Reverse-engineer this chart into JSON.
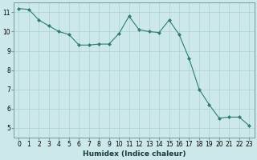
{
  "x": [
    0,
    1,
    2,
    3,
    4,
    5,
    6,
    7,
    8,
    9,
    10,
    11,
    12,
    13,
    14,
    15,
    16,
    17,
    18,
    19,
    20,
    21,
    22,
    23
  ],
  "y": [
    11.2,
    11.15,
    10.6,
    10.3,
    10.0,
    9.85,
    9.3,
    9.3,
    9.35,
    9.35,
    9.9,
    10.8,
    10.1,
    10.0,
    9.95,
    10.6,
    9.85,
    8.6,
    7.0,
    6.2,
    5.5,
    5.55,
    5.55,
    5.1
  ],
  "line_color": "#2e7d6e",
  "marker": "D",
  "marker_size": 2,
  "bg_color": "#cce8ea",
  "grid_color": "#b0d4d4",
  "xlabel": "Humidex (Indice chaleur)",
  "xlim": [
    -0.5,
    23.5
  ],
  "ylim": [
    4.5,
    11.5
  ],
  "yticks": [
    5,
    6,
    7,
    8,
    9,
    10,
    11
  ],
  "xticks": [
    0,
    1,
    2,
    3,
    4,
    5,
    6,
    7,
    8,
    9,
    10,
    11,
    12,
    13,
    14,
    15,
    16,
    17,
    18,
    19,
    20,
    21,
    22,
    23
  ],
  "tick_fontsize": 5.5,
  "label_fontsize": 6.5,
  "spine_color": "#7a9a9a"
}
